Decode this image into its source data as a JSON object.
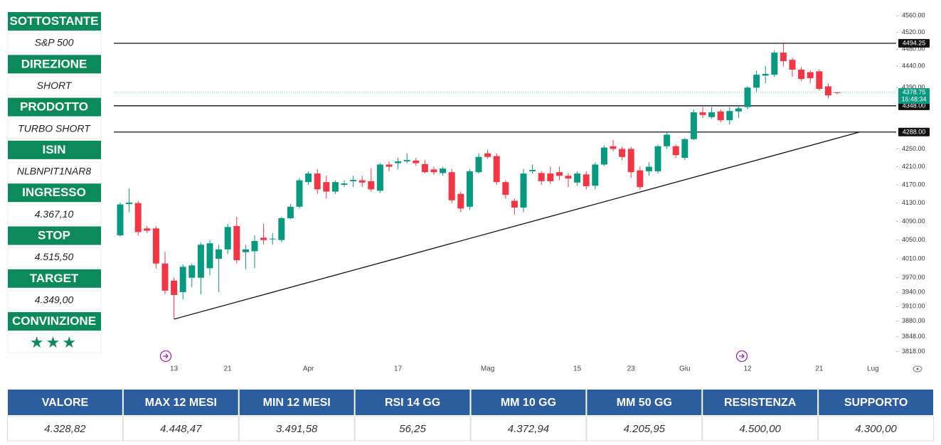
{
  "sidebar": [
    {
      "label": "SOTTOSTANTE",
      "value": "S&P 500"
    },
    {
      "label": "DIREZIONE",
      "value": "SHORT"
    },
    {
      "label": "PRODOTTO",
      "value": "TURBO SHORT"
    },
    {
      "label": "ISIN",
      "value": "NLBNPIT1NAR8"
    },
    {
      "label": "INGRESSO",
      "value": "4.367,10"
    },
    {
      "label": "STOP",
      "value": "4.515,50"
    },
    {
      "label": "TARGET",
      "value": "4.349,00"
    },
    {
      "label": "CONVINZIONE",
      "value": "★★★"
    }
  ],
  "chart_data": {
    "type": "candlestick",
    "log_scale": true,
    "up_color": "#089981",
    "down_color": "#f23645",
    "categories": [
      null,
      null,
      null,
      null,
      null,
      null,
      "13",
      null,
      null,
      null,
      null,
      null,
      "21",
      null,
      null,
      null,
      null,
      null,
      null,
      null,
      null,
      "Apr",
      null,
      null,
      null,
      null,
      null,
      null,
      null,
      null,
      null,
      "17",
      null,
      null,
      null,
      null,
      null,
      null,
      null,
      null,
      null,
      "Mag",
      null,
      null,
      null,
      null,
      null,
      null,
      null,
      null,
      null,
      "15",
      null,
      null,
      null,
      null,
      null,
      "23",
      null,
      null,
      null,
      null,
      null,
      "Giu",
      null,
      null,
      null,
      null,
      null,
      null,
      "12",
      null,
      null,
      null,
      null,
      null,
      null,
      null,
      "21",
      null,
      null,
      null,
      null,
      null,
      "Lug"
    ],
    "open": [
      4060,
      4128,
      4130,
      4075,
      4075,
      4000,
      3964,
      3940,
      3970,
      3970,
      3990,
      4010,
      4030,
      4080,
      4024,
      4026,
      4055,
      4052,
      4050,
      4097,
      4122,
      4176,
      4195,
      4176,
      4155,
      4170,
      4178,
      4180,
      4178,
      4157,
      4215,
      4218,
      4222,
      4224,
      4216,
      4204,
      4196,
      4198,
      4150,
      4122,
      4198,
      4240,
      4234,
      4176,
      4135,
      4120,
      4200,
      4196,
      4195,
      4198,
      4190,
      4175,
      4193,
      4168,
      4215,
      4256,
      4250,
      4250,
      4202,
      4200,
      4200,
      4256,
      4256,
      4230,
      4272,
      4333,
      4322,
      4335,
      4315,
      4335,
      4345,
      4390,
      4418,
      4420,
      4472,
      4455,
      4432,
      4426,
      4428,
      4393,
      4379,
      null,
      null,
      null,
      null
    ],
    "high": [
      4131,
      4162,
      4135,
      4080,
      4080,
      4025,
      3970,
      3998,
      4000,
      4045,
      4050,
      4040,
      4085,
      4100,
      4040,
      4060,
      4085,
      4065,
      4100,
      4128,
      4185,
      4200,
      4205,
      4190,
      4180,
      4180,
      4190,
      4190,
      4207,
      4218,
      4222,
      4230,
      4240,
      4230,
      4225,
      4210,
      4210,
      4205,
      4155,
      4205,
      4240,
      4248,
      4240,
      4180,
      4140,
      4205,
      4215,
      4200,
      4210,
      4210,
      4196,
      4200,
      4200,
      4220,
      4258,
      4270,
      4255,
      4255,
      4210,
      4220,
      4260,
      4290,
      4260,
      4275,
      4340,
      4345,
      4345,
      4340,
      4345,
      4350,
      4393,
      4430,
      4440,
      4478,
      4493,
      4460,
      4438,
      4430,
      4432,
      4400,
      4380,
      null,
      null,
      null,
      null
    ],
    "low": [
      4057,
      4110,
      4060,
      4065,
      3990,
      3935,
      3884,
      3925,
      3950,
      3935,
      3975,
      3940,
      4020,
      4000,
      3988,
      3990,
      4040,
      4040,
      4045,
      4095,
      4118,
      4170,
      4150,
      4140,
      4150,
      4165,
      4165,
      4165,
      4155,
      4152,
      4200,
      4205,
      4218,
      4212,
      4195,
      4192,
      4190,
      4130,
      4110,
      4115,
      4195,
      4228,
      4170,
      4140,
      4105,
      4110,
      4195,
      4170,
      4172,
      4180,
      4165,
      4168,
      4160,
      4160,
      4212,
      4245,
      4225,
      4185,
      4160,
      4190,
      4195,
      4250,
      4230,
      4225,
      4270,
      4320,
      4318,
      4310,
      4305,
      4320,
      4340,
      4380,
      4400,
      4415,
      4440,
      4415,
      4405,
      4400,
      4383,
      4365,
      4375,
      null,
      null,
      null,
      null
    ],
    "close": [
      4127,
      4131,
      4067,
      4070,
      4000,
      3943,
      3934,
      3993,
      3996,
      4040,
      4043,
      4030,
      4078,
      4007,
      4030,
      4048,
      4050,
      4053,
      4097,
      4122,
      4180,
      4195,
      4160,
      4155,
      4176,
      4173,
      4181,
      4175,
      4160,
      4215,
      4210,
      4222,
      4225,
      4218,
      4198,
      4198,
      4206,
      4136,
      4118,
      4200,
      4232,
      4232,
      4176,
      4148,
      4120,
      4195,
      4203,
      4178,
      4178,
      4190,
      4184,
      4195,
      4167,
      4215,
      4253,
      4250,
      4232,
      4198,
      4165,
      4210,
      4256,
      4282,
      4236,
      4272,
      4333,
      4327,
      4333,
      4315,
      4336,
      4342,
      4390,
      4420,
      4422,
      4472,
      4452,
      4432,
      4410,
      4412,
      4387,
      4372,
      4378.75,
      null,
      null,
      null,
      null
    ],
    "ylim": [
      3803,
      4581
    ],
    "yticks": [
      {
        "value": 4560,
        "label": "4560.00"
      },
      {
        "value": 4520,
        "label": "4520.00"
      },
      {
        "value": 4480,
        "label": "4480.00"
      },
      {
        "value": 4440,
        "label": "4440.00"
      },
      {
        "value": 4390,
        "label": "4390.00"
      },
      {
        "value": 4250,
        "label": "4250.00"
      },
      {
        "value": 4210,
        "label": "4210.00"
      },
      {
        "value": 4170,
        "label": "4170.00"
      },
      {
        "value": 4130,
        "label": "4130.00"
      },
      {
        "value": 4090,
        "label": "4090.00"
      },
      {
        "value": 4050,
        "label": "4050.00"
      },
      {
        "value": 4010,
        "label": "4010.00"
      },
      {
        "value": 3970,
        "label": "3970.00"
      },
      {
        "value": 3940,
        "label": "3940.00"
      },
      {
        "value": 3910,
        "label": "3910.00"
      },
      {
        "value": 3880,
        "label": "3880.00"
      },
      {
        "value": 3848,
        "label": "3848.00"
      },
      {
        "value": 3818,
        "label": "3818.00"
      }
    ],
    "hlines": [
      {
        "value": 4494.25,
        "label": "4494.25"
      },
      {
        "value": 4348,
        "label": "4348.00"
      },
      {
        "value": 4288,
        "label": "4288.00"
      }
    ],
    "last_price": {
      "value": 4378.75,
      "label": "4378.75",
      "countdown": "16:48:34",
      "color": "#089981"
    },
    "trendline": {
      "x": [
        6,
        82.5
      ],
      "y": [
        3884,
        4288
      ]
    }
  },
  "table": {
    "headers": [
      "VALORE",
      "MAX 12 MESI",
      "MIN 12 MESI",
      "RSI 14 GG",
      "MM 10 GG",
      "MM 50 GG",
      "RESISTENZA",
      "SUPPORTO"
    ],
    "rows": [
      [
        "4.328,82",
        "4.448,47",
        "3.491,58",
        "56,25",
        "4.372,94",
        "4.205,95",
        "4.500,00",
        "4.300,00"
      ]
    ]
  }
}
